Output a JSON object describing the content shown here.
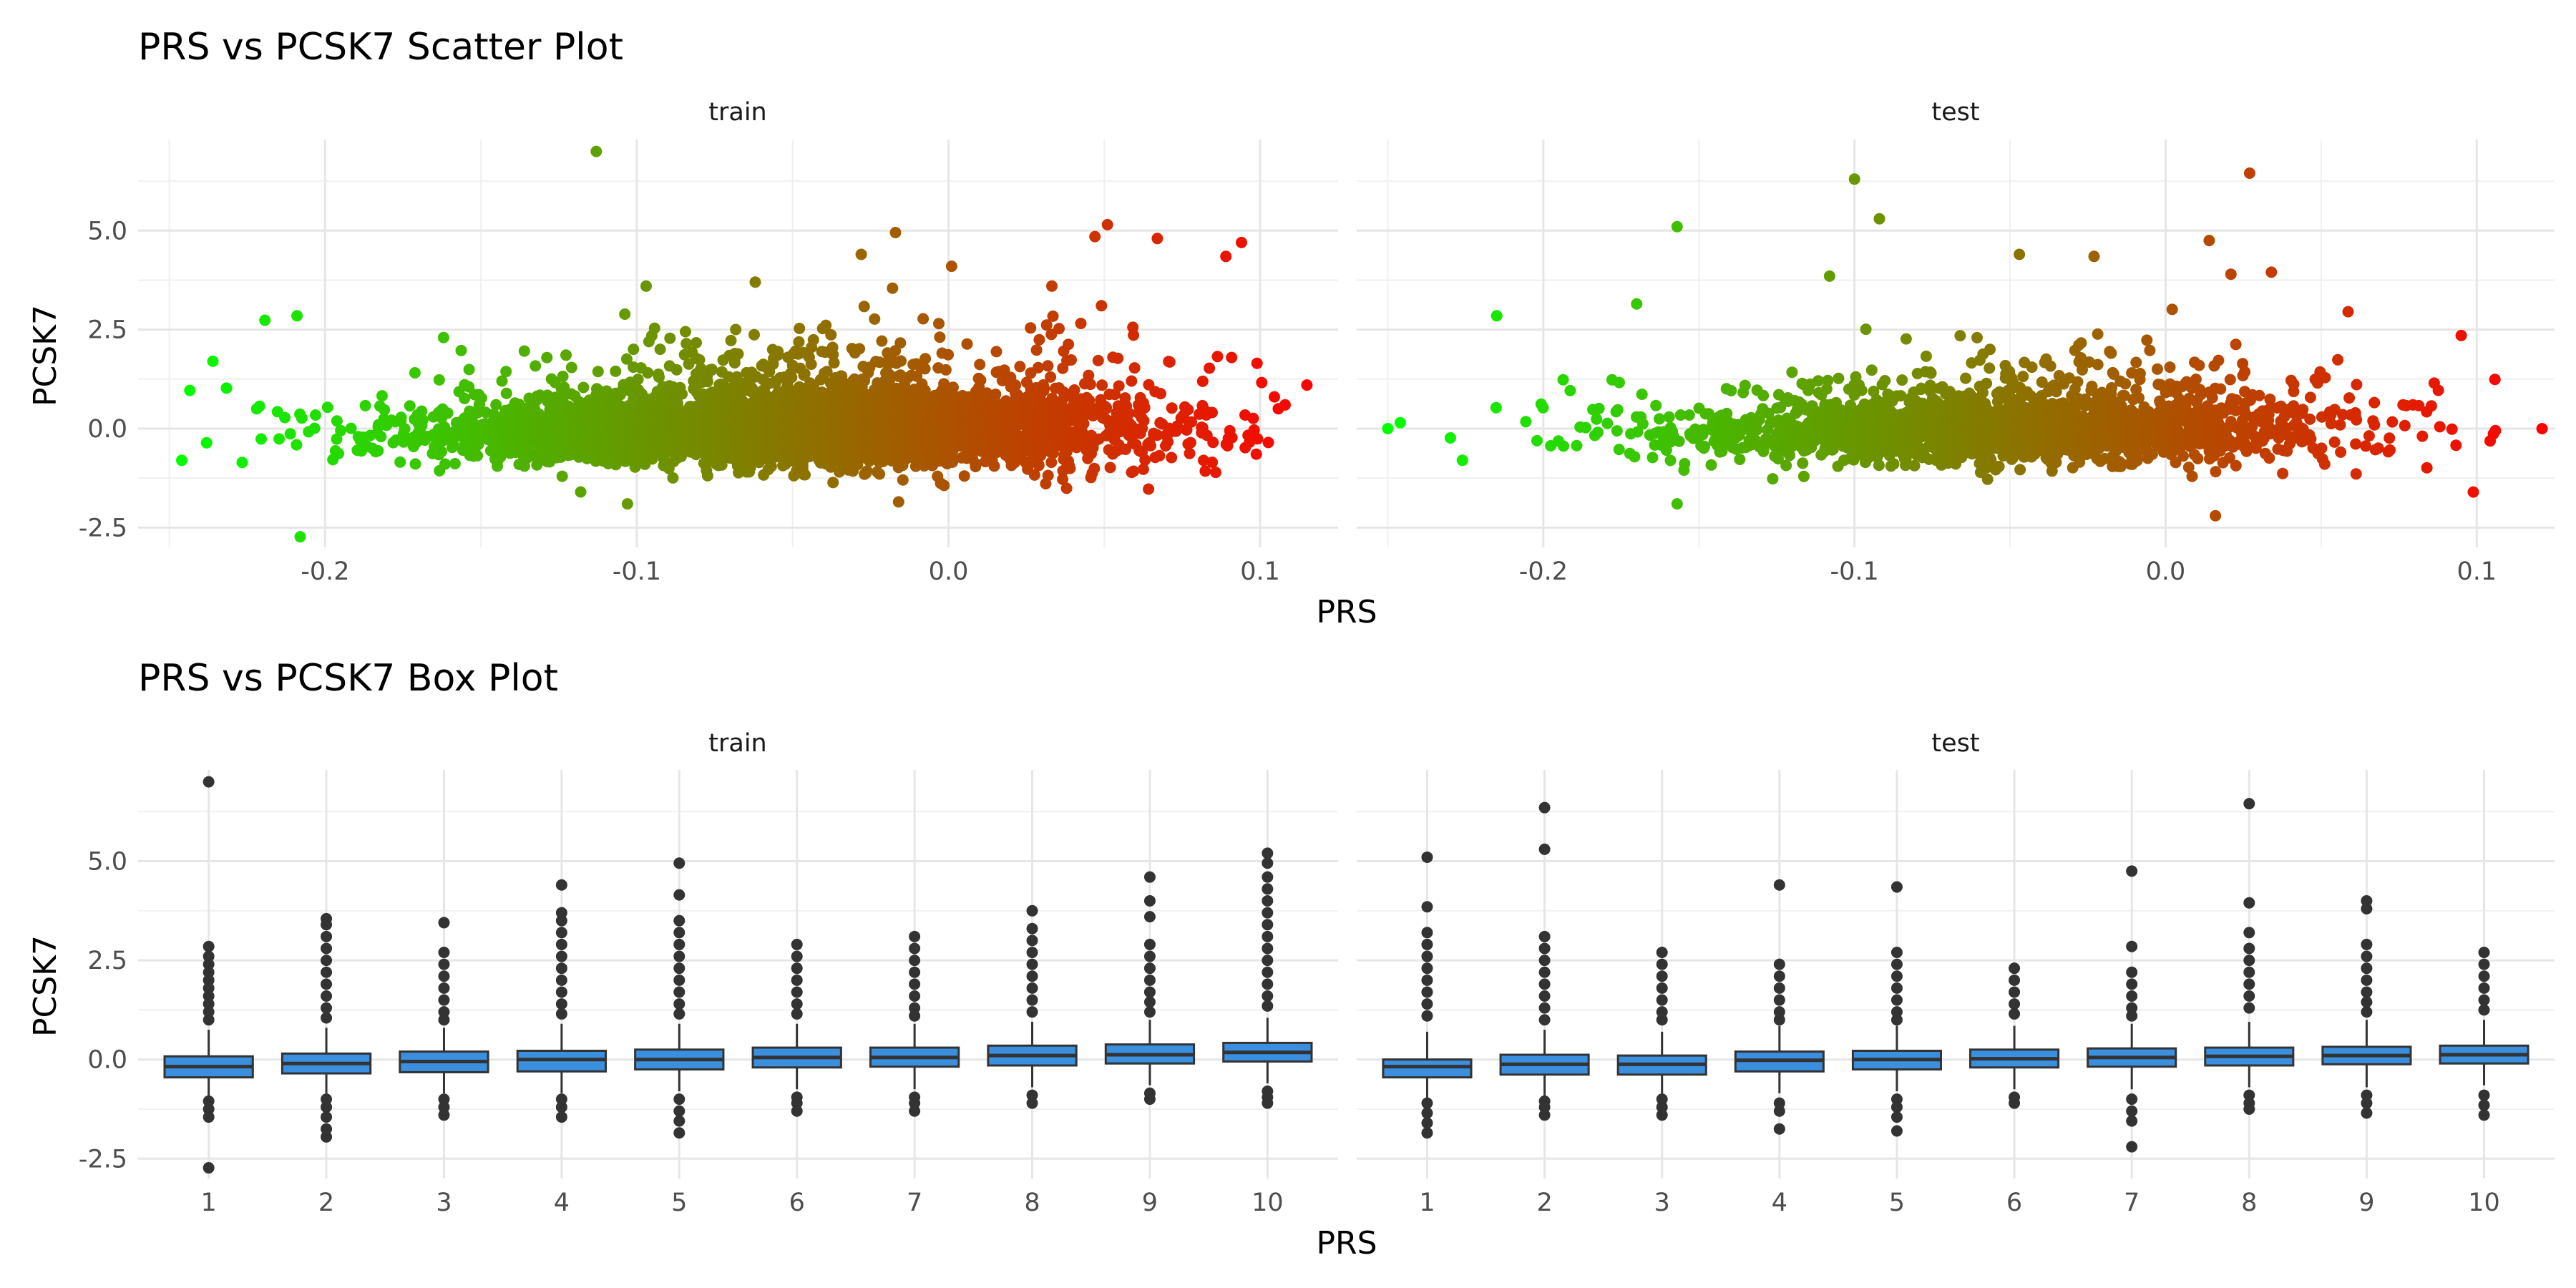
{
  "chart_data": [
    {
      "type": "scatter",
      "title": "PRS vs PCSK7 Scatter Plot",
      "xlabel": "PRS",
      "ylabel": "PCSK7",
      "facets": [
        "train",
        "test"
      ],
      "xlim": [
        -0.26,
        0.125
      ],
      "ylim": [
        -3.0,
        7.3
      ],
      "x_ticks": [
        -0.2,
        -0.1,
        0.0,
        0.1
      ],
      "y_ticks": [
        -2.5,
        0.0,
        2.5,
        5.0
      ],
      "grid": true,
      "color_gradient": {
        "low": "#00ff00",
        "high": "#ff0000",
        "mapped_to": "PRS"
      },
      "series": [
        {
          "facet": "train",
          "n_points": 4500,
          "outliers": [
            [
              -0.113,
              7.0
            ],
            [
              -0.209,
              2.85
            ],
            [
              -0.208,
              -2.73
            ],
            [
              -0.246,
              -0.8
            ],
            [
              -0.236,
              1.7
            ],
            [
              -0.017,
              4.95
            ],
            [
              0.051,
              5.15
            ],
            [
              0.047,
              4.85
            ],
            [
              0.067,
              4.8
            ],
            [
              0.094,
              4.7
            ],
            [
              0.089,
              4.35
            ],
            [
              -0.028,
              4.4
            ],
            [
              0.099,
              1.65
            ],
            [
              0.115,
              1.1
            ],
            [
              0.108,
              0.6
            ],
            [
              -0.097,
              3.6
            ],
            [
              -0.103,
              -1.9
            ],
            [
              -0.016,
              -1.85
            ],
            [
              -0.162,
              2.3
            ],
            [
              0.001,
              4.1
            ],
            [
              -0.062,
              3.7
            ],
            [
              -0.118,
              -1.6
            ]
          ]
        },
        {
          "facet": "test",
          "n_points": 1800,
          "outliers": [
            [
              -0.1,
              6.3
            ],
            [
              0.027,
              6.45
            ],
            [
              -0.092,
              5.3
            ],
            [
              -0.157,
              5.1
            ],
            [
              0.014,
              4.75
            ],
            [
              -0.047,
              4.4
            ],
            [
              -0.023,
              4.35
            ],
            [
              0.034,
              3.95
            ],
            [
              0.021,
              3.9
            ],
            [
              -0.108,
              3.85
            ],
            [
              -0.215,
              2.85
            ],
            [
              -0.17,
              3.15
            ],
            [
              0.095,
              2.35
            ],
            [
              0.121,
              0.0
            ],
            [
              0.106,
              -0.05
            ],
            [
              -0.25,
              0.0
            ],
            [
              -0.246,
              0.15
            ],
            [
              0.016,
              -2.2
            ],
            [
              -0.157,
              -1.9
            ],
            [
              -0.226,
              -0.8
            ]
          ]
        }
      ]
    },
    {
      "type": "box",
      "title": "PRS vs PCSK7 Box Plot",
      "xlabel": "PRS",
      "ylabel": "PCSK7",
      "facets": [
        "train",
        "test"
      ],
      "categories": [
        "1",
        "2",
        "3",
        "4",
        "5",
        "6",
        "7",
        "8",
        "9",
        "10"
      ],
      "ylim": [
        -3.0,
        7.3
      ],
      "y_ticks": [
        -2.5,
        0.0,
        2.5,
        5.0
      ],
      "grid": true,
      "fill": "#3a8fdf",
      "series": [
        {
          "facet": "train",
          "boxes": [
            {
              "q1": -0.45,
              "median": -0.18,
              "q3": 0.08,
              "low": -0.95,
              "high": 0.75,
              "outliers": [
                7.0,
                2.85,
                2.6,
                2.4,
                2.2,
                2.0,
                1.8,
                1.6,
                1.4,
                1.2,
                1.0,
                -1.05,
                -1.25,
                -1.45,
                -2.73
              ]
            },
            {
              "q1": -0.35,
              "median": -0.1,
              "q3": 0.15,
              "low": -0.9,
              "high": 0.8,
              "outliers": [
                3.55,
                3.4,
                3.1,
                2.8,
                2.5,
                2.2,
                1.9,
                1.6,
                1.3,
                1.05,
                -1.0,
                -1.2,
                -1.45,
                -1.75,
                -1.95
              ]
            },
            {
              "q1": -0.32,
              "median": -0.05,
              "q3": 0.2,
              "low": -0.85,
              "high": 0.8,
              "outliers": [
                3.45,
                2.7,
                2.4,
                2.1,
                1.8,
                1.5,
                1.2,
                1.0,
                -1.0,
                -1.2,
                -1.4
              ]
            },
            {
              "q1": -0.3,
              "median": 0.0,
              "q3": 0.22,
              "low": -0.85,
              "high": 0.9,
              "outliers": [
                4.4,
                3.7,
                3.5,
                3.2,
                2.9,
                2.6,
                2.3,
                2.0,
                1.7,
                1.4,
                1.15,
                -1.0,
                -1.2,
                -1.45
              ]
            },
            {
              "q1": -0.25,
              "median": 0.0,
              "q3": 0.25,
              "low": -0.8,
              "high": 0.9,
              "outliers": [
                4.95,
                4.15,
                3.5,
                3.2,
                2.9,
                2.6,
                2.3,
                2.0,
                1.7,
                1.4,
                1.15,
                -1.0,
                -1.3,
                -1.55,
                -1.85
              ]
            },
            {
              "q1": -0.2,
              "median": 0.05,
              "q3": 0.3,
              "low": -0.75,
              "high": 0.9,
              "outliers": [
                2.9,
                2.6,
                2.3,
                2.0,
                1.7,
                1.4,
                1.15,
                -0.95,
                -1.1,
                -1.3
              ]
            },
            {
              "q1": -0.18,
              "median": 0.05,
              "q3": 0.3,
              "low": -0.75,
              "high": 0.9,
              "outliers": [
                3.1,
                2.8,
                2.5,
                2.2,
                1.9,
                1.6,
                1.3,
                1.1,
                -0.95,
                -1.1,
                -1.3
              ]
            },
            {
              "q1": -0.15,
              "median": 0.1,
              "q3": 0.35,
              "low": -0.7,
              "high": 0.95,
              "outliers": [
                3.75,
                3.3,
                3.0,
                2.7,
                2.4,
                2.1,
                1.8,
                1.5,
                1.2,
                -0.9,
                -1.1
              ]
            },
            {
              "q1": -0.1,
              "median": 0.12,
              "q3": 0.38,
              "low": -0.65,
              "high": 1.0,
              "outliers": [
                4.6,
                4.0,
                3.6,
                2.9,
                2.6,
                2.3,
                2.0,
                1.7,
                1.45,
                1.2,
                -0.85,
                -1.0
              ]
            },
            {
              "q1": -0.05,
              "median": 0.18,
              "q3": 0.42,
              "low": -0.6,
              "high": 1.05,
              "outliers": [
                5.2,
                4.95,
                4.6,
                4.3,
                4.0,
                3.7,
                3.4,
                3.1,
                2.8,
                2.5,
                2.2,
                1.9,
                1.6,
                1.35,
                -0.8,
                -0.95,
                -1.1
              ]
            }
          ]
        },
        {
          "facet": "test",
          "boxes": [
            {
              "q1": -0.45,
              "median": -0.18,
              "q3": 0.0,
              "low": -1.0,
              "high": 0.7,
              "outliers": [
                5.1,
                3.85,
                3.2,
                2.9,
                2.6,
                2.3,
                2.0,
                1.7,
                1.4,
                1.1,
                -1.1,
                -1.35,
                -1.6,
                -1.85
              ]
            },
            {
              "q1": -0.38,
              "median": -0.12,
              "q3": 0.12,
              "low": -0.95,
              "high": 0.75,
              "outliers": [
                6.35,
                5.3,
                3.1,
                2.8,
                2.5,
                2.2,
                1.9,
                1.6,
                1.3,
                1.0,
                -1.05,
                -1.2,
                -1.4
              ]
            },
            {
              "q1": -0.38,
              "median": -0.12,
              "q3": 0.1,
              "low": -0.95,
              "high": 0.7,
              "outliers": [
                2.7,
                2.4,
                2.1,
                1.8,
                1.5,
                1.2,
                1.0,
                -1.0,
                -1.2,
                -1.4
              ]
            },
            {
              "q1": -0.3,
              "median": -0.02,
              "q3": 0.2,
              "low": -0.85,
              "high": 0.85,
              "outliers": [
                4.4,
                2.4,
                2.1,
                1.8,
                1.5,
                1.2,
                1.0,
                -1.1,
                -1.3,
                -1.75
              ]
            },
            {
              "q1": -0.25,
              "median": 0.0,
              "q3": 0.22,
              "low": -0.8,
              "high": 0.85,
              "outliers": [
                4.35,
                2.7,
                2.4,
                2.1,
                1.8,
                1.5,
                1.2,
                1.0,
                -1.0,
                -1.2,
                -1.45,
                -1.8
              ]
            },
            {
              "q1": -0.2,
              "median": 0.02,
              "q3": 0.25,
              "low": -0.75,
              "high": 0.85,
              "outliers": [
                2.3,
                2.0,
                1.7,
                1.4,
                1.15,
                -0.95,
                -1.1
              ]
            },
            {
              "q1": -0.18,
              "median": 0.05,
              "q3": 0.28,
              "low": -0.75,
              "high": 0.9,
              "outliers": [
                4.75,
                2.85,
                2.2,
                1.9,
                1.6,
                1.3,
                1.1,
                -1.0,
                -1.3,
                -1.55,
                -2.2
              ]
            },
            {
              "q1": -0.15,
              "median": 0.08,
              "q3": 0.3,
              "low": -0.7,
              "high": 0.95,
              "outliers": [
                6.45,
                3.95,
                3.2,
                2.8,
                2.5,
                2.2,
                1.9,
                1.6,
                1.3,
                -0.9,
                -1.1,
                -1.25
              ]
            },
            {
              "q1": -0.12,
              "median": 0.1,
              "q3": 0.32,
              "low": -0.7,
              "high": 1.0,
              "outliers": [
                4.0,
                3.8,
                2.9,
                2.6,
                2.3,
                2.0,
                1.7,
                1.45,
                1.2,
                -0.9,
                -1.1,
                -1.35
              ]
            },
            {
              "q1": -0.1,
              "median": 0.12,
              "q3": 0.35,
              "low": -0.65,
              "high": 1.0,
              "outliers": [
                2.7,
                2.4,
                2.1,
                1.8,
                1.5,
                1.25,
                -0.9,
                -1.15,
                -1.4
              ]
            }
          ]
        }
      ]
    }
  ]
}
